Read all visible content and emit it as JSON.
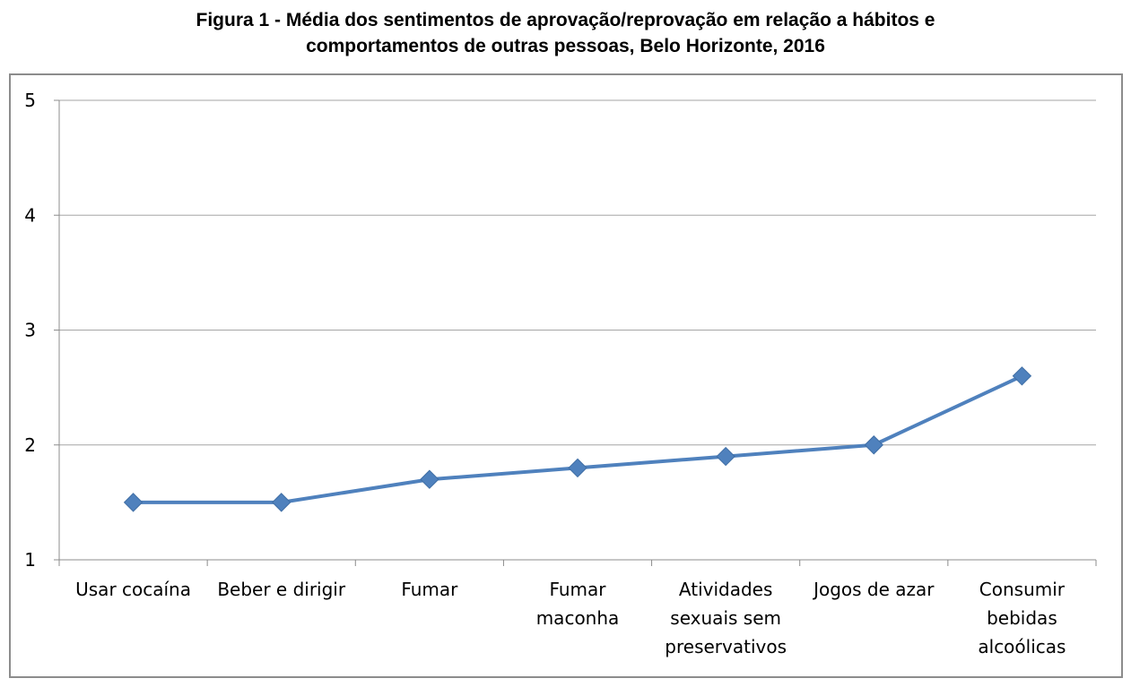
{
  "figure": {
    "title_line1": "Figura 1 - Média dos sentimentos de aprovação/reprovação em relação a hábitos e",
    "title_line2": "comportamentos de outras pessoas, Belo Horizonte, 2016"
  },
  "chart_data": {
    "type": "line",
    "title": "Figura 1 - Média dos sentimentos de aprovação/reprovação em relação a hábitos e comportamentos de outras pessoas, Belo Horizonte, 2016",
    "categories": [
      [
        "Usar cocaína"
      ],
      [
        "Beber e dirigir"
      ],
      [
        "Fumar"
      ],
      [
        "Fumar",
        "maconha"
      ],
      [
        "Atividades",
        "sexuais sem",
        "preservativos"
      ],
      [
        "Jogos de azar"
      ],
      [
        "Consumir",
        "bebidas",
        "alcoólicas"
      ]
    ],
    "series": [
      {
        "name": "Média",
        "values": [
          1.5,
          1.5,
          1.7,
          1.8,
          1.9,
          2.0,
          2.6
        ],
        "color": "#4f81bd",
        "marker": "diamond"
      }
    ],
    "ylim": [
      1,
      5
    ],
    "yticks": [
      "1",
      "2",
      "3",
      "4",
      "5"
    ],
    "xlabel": "",
    "ylabel": "",
    "grid": true,
    "legend": "none",
    "gridline_color": "#a6a6a6",
    "axis_color": "#8c8c8c"
  }
}
